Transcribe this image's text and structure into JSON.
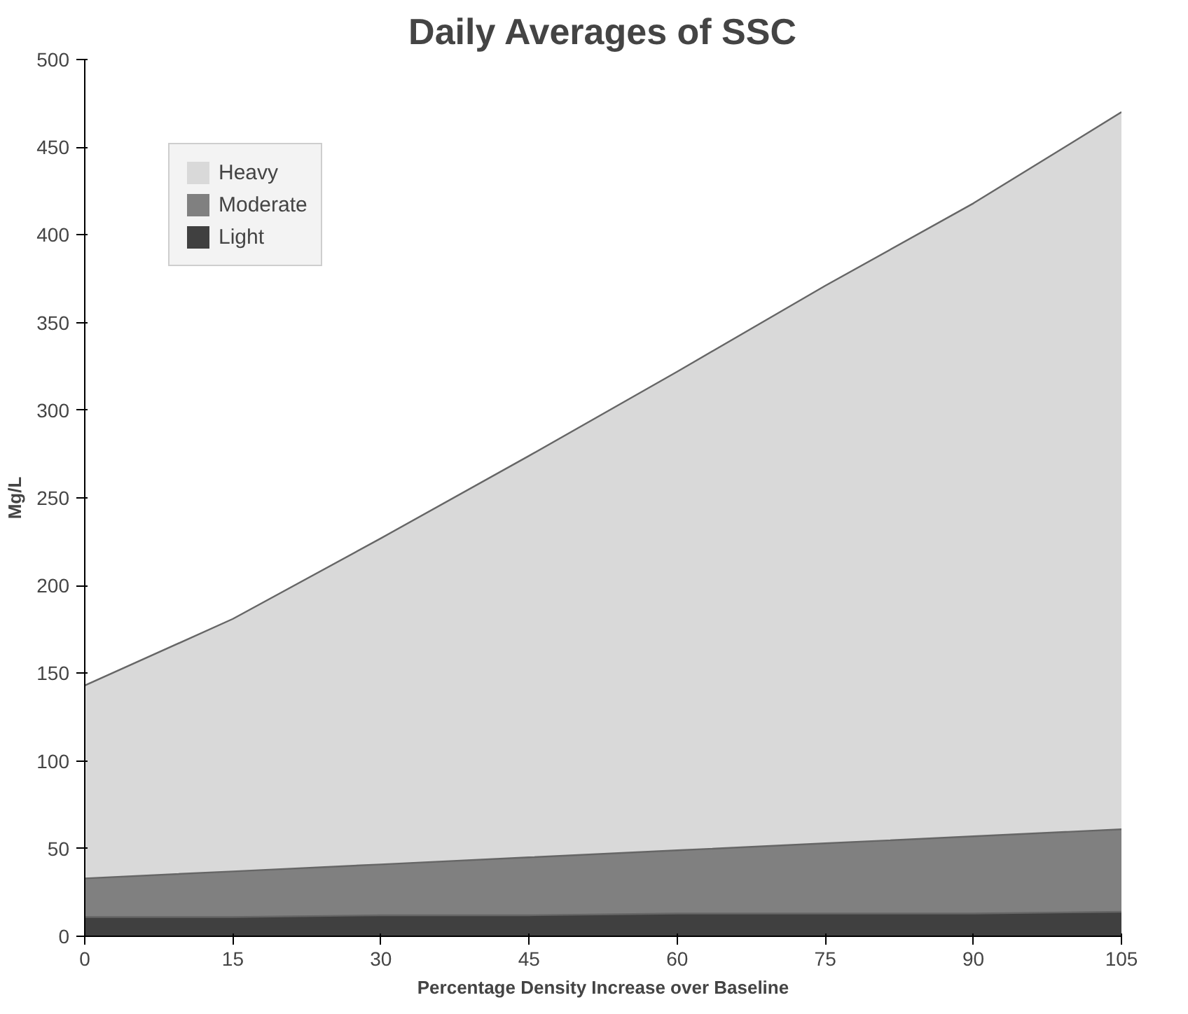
{
  "chart_data": {
    "type": "area",
    "title": "Daily Averages of SSC",
    "xlabel": "Percentage Density Increase over Baseline",
    "ylabel": "Mg/L",
    "x": [
      0,
      15,
      30,
      45,
      60,
      75,
      90,
      105
    ],
    "series": [
      {
        "name": "Heavy",
        "color": "#d9d9d9",
        "values": [
          143,
          181,
          227,
          274,
          322,
          371,
          418,
          470
        ]
      },
      {
        "name": "Moderate",
        "color": "#808080",
        "values": [
          33,
          37,
          41,
          45,
          49,
          53,
          57,
          61
        ]
      },
      {
        "name": "Light",
        "color": "#404040",
        "values": [
          11,
          11,
          12,
          12,
          13,
          13,
          13,
          14
        ]
      }
    ],
    "xlim": [
      0,
      105
    ],
    "xticks": [
      0,
      15,
      30,
      45,
      60,
      75,
      90,
      105
    ],
    "ylim": [
      0,
      500
    ],
    "yticks": [
      0,
      50,
      100,
      150,
      200,
      250,
      300,
      350,
      400,
      450,
      500
    ],
    "grid": false,
    "legend": "top left"
  }
}
